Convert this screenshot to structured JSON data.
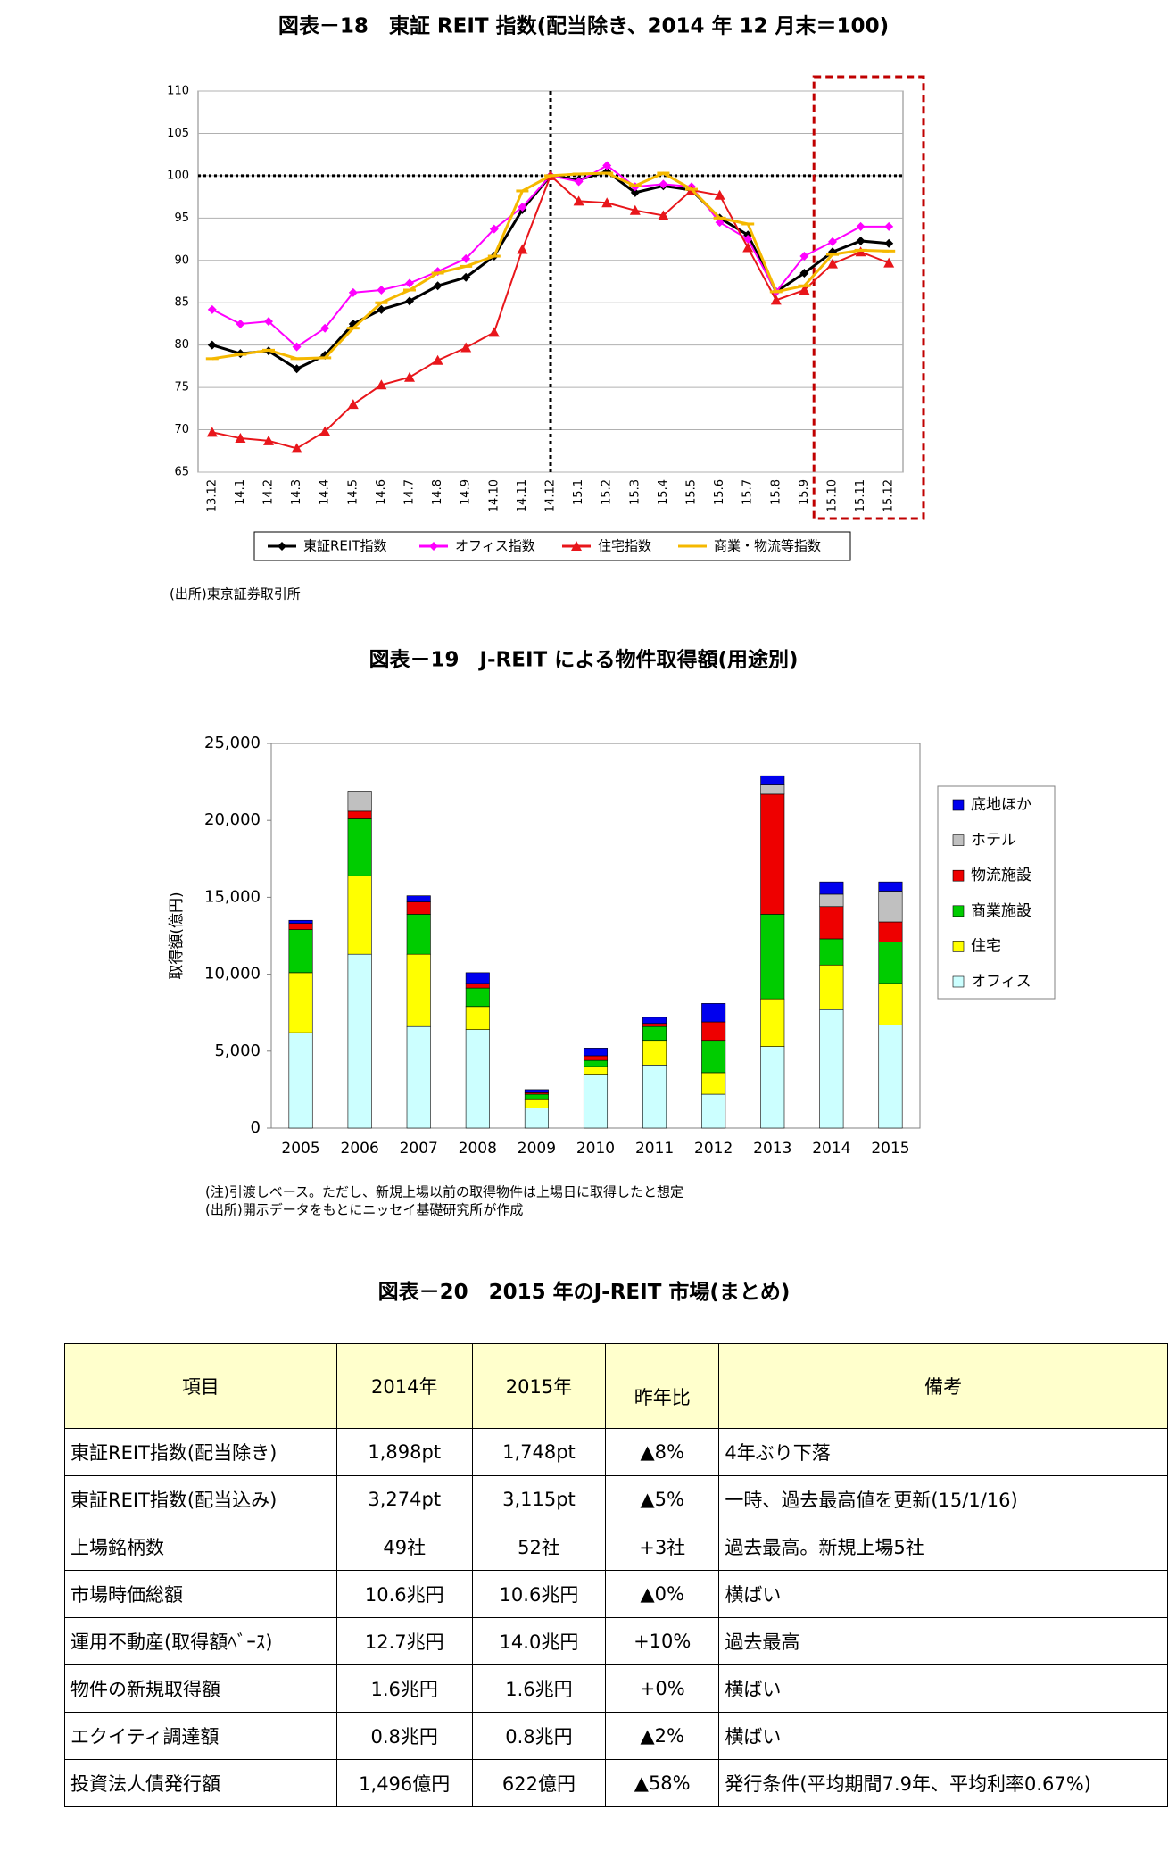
{
  "chart_data": [
    {
      "type": "line",
      "title": "図表－18　東証 REIT 指数(配当除き、2014 年 12 月末＝100)",
      "categories": [
        "13.12",
        "14.1",
        "14.2",
        "14.3",
        "14.4",
        "14.5",
        "14.6",
        "14.7",
        "14.8",
        "14.9",
        "14.10",
        "14.11",
        "14.12",
        "15.1",
        "15.2",
        "15.3",
        "15.4",
        "15.5",
        "15.6",
        "15.7",
        "15.8",
        "15.9",
        "15.10",
        "15.11",
        "15.12"
      ],
      "series": [
        {
          "name": "東証REIT指数",
          "color": "#000000",
          "marker": "diamond",
          "values": [
            80,
            79,
            79.3,
            77.2,
            78.8,
            82.5,
            84.2,
            85.2,
            87,
            88,
            90.5,
            96,
            100,
            99.5,
            100.5,
            98,
            98.8,
            98.3,
            95,
            93,
            86.3,
            88.5,
            91,
            92.3,
            92
          ]
        },
        {
          "name": "オフィス指数",
          "color": "#ff00ff",
          "marker": "diamond",
          "values": [
            84.2,
            82.5,
            82.8,
            79.8,
            82,
            86.2,
            86.5,
            87.3,
            88.7,
            90.2,
            93.7,
            96.3,
            100,
            99.3,
            101.2,
            98.7,
            99,
            98.7,
            94.5,
            92.5,
            86.3,
            90.5,
            92.2,
            94,
            94
          ]
        },
        {
          "name": "住宅指数",
          "color": "#e8161b",
          "marker": "triangle",
          "values": [
            69.7,
            69,
            68.7,
            67.8,
            69.8,
            73,
            75.3,
            76.2,
            78.2,
            79.7,
            81.5,
            91.3,
            100,
            97,
            96.8,
            95.9,
            95.3,
            98.3,
            97.7,
            91.5,
            85.3,
            86.5,
            89.6,
            91,
            89.7
          ]
        },
        {
          "name": "商業・物流等指数",
          "color": "#f5b800",
          "marker": "dash",
          "values": [
            78.4,
            78.9,
            79.4,
            78.4,
            78.5,
            82,
            85,
            86.5,
            88.5,
            89.3,
            90.5,
            98.2,
            100,
            100.2,
            100.3,
            98.8,
            100.3,
            98.4,
            95,
            94.3,
            86.3,
            87,
            90.7,
            91.2,
            91.1
          ]
        }
      ],
      "ylim": [
        65,
        110
      ],
      "yticks": [
        65,
        70,
        75,
        80,
        85,
        90,
        95,
        100,
        105,
        110
      ],
      "grid": true,
      "reference_y": 100,
      "reference_x": "14.12",
      "highlight": [
        "15.10",
        "15.12"
      ],
      "legend": "bottom",
      "source": "(出所)東京証券取引所"
    },
    {
      "type": "stacked_bar",
      "title": "図表－19　J-REIT による物件取得額(用途別)",
      "y_label": "取得額(億円)",
      "categories": [
        "2005",
        "2006",
        "2007",
        "2008",
        "2009",
        "2010",
        "2011",
        "2012",
        "2013",
        "2014",
        "2015"
      ],
      "series": [
        {
          "name": "オフィス",
          "color": "#ccffff",
          "values": [
            6200,
            11300,
            6600,
            6400,
            1300,
            3500,
            4100,
            2200,
            5300,
            7700,
            6700
          ]
        },
        {
          "name": "住宅",
          "color": "#ffff00",
          "values": [
            3900,
            5100,
            4700,
            1500,
            600,
            500,
            1600,
            1400,
            3100,
            2900,
            2700
          ]
        },
        {
          "name": "商業施設",
          "color": "#00cc00",
          "values": [
            2800,
            3700,
            2600,
            1200,
            300,
            400,
            900,
            2100,
            5500,
            1700,
            2700
          ]
        },
        {
          "name": "物流施設",
          "color": "#ee0000",
          "values": [
            400,
            500,
            800,
            300,
            100,
            300,
            200,
            1200,
            7800,
            2100,
            1300
          ]
        },
        {
          "name": "ホテル",
          "color": "#c0c0c0",
          "values": [
            0,
            1300,
            0,
            0,
            0,
            0,
            0,
            0,
            600,
            800,
            2000
          ]
        },
        {
          "name": "底地ほか",
          "color": "#0000ee",
          "values": [
            200,
            0,
            400,
            700,
            200,
            500,
            400,
            1200,
            600,
            800,
            600
          ]
        }
      ],
      "ylim": [
        0,
        25000
      ],
      "yticks": [
        0,
        {
          "value": 5000,
          "label": "5,000"
        },
        {
          "value": 10000,
          "label": "10,000"
        },
        {
          "value": 15000,
          "label": "15,000"
        },
        {
          "value": 20000,
          "label": "20,000"
        },
        {
          "value": 25000,
          "label": "25,000"
        }
      ],
      "legend": "right",
      "notes": [
        "(注)引渡しベース。ただし、新規上場以前の取得物件は上場日に取得したと想定",
        "(出所)開示データをもとにニッセイ基礎研究所が作成"
      ]
    }
  ],
  "table": {
    "title": "図表－20　2015 年のJ-REIT 市場(まとめ)",
    "header": [
      "項目",
      "2014年",
      "2015年",
      "昨年比",
      "備考"
    ],
    "rows": [
      [
        "東証REIT指数(配当除き)",
        "1,898pt",
        "1,748pt",
        "▲8%",
        "4年ぶり下落"
      ],
      [
        "東証REIT指数(配当込み)",
        "3,274pt",
        "3,115pt",
        "▲5%",
        "一時、過去最高値を更新(15/1/16)"
      ],
      [
        "上場銘柄数",
        "49社",
        "52社",
        "+3社",
        "過去最高。新規上場5社"
      ],
      [
        "市場時価総額",
        "10.6兆円",
        "10.6兆円",
        "▲0%",
        "横ばい"
      ],
      [
        "運用不動産(取得額ﾍﾞｰｽ)",
        "12.7兆円",
        "14.0兆円",
        "+10%",
        "過去最高"
      ],
      [
        "物件の新規取得額",
        "1.6兆円",
        "1.6兆円",
        "+0%",
        "横ばい"
      ],
      [
        "エクイティ調達額",
        "0.8兆円",
        "0.8兆円",
        "▲2%",
        "横ばい"
      ],
      [
        "投資法人債発行額",
        "1,496億円",
        "622億円",
        "▲58%",
        "発行条件(平均期間7.9年、平均利率0.67%)"
      ]
    ]
  }
}
